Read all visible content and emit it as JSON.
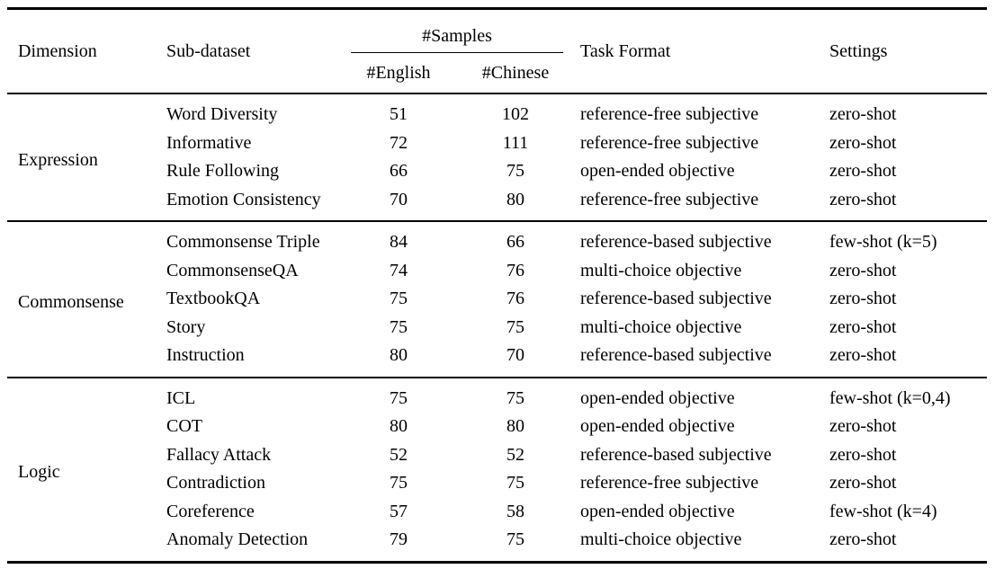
{
  "colors": {
    "text": "#000000",
    "background": "#ffffff",
    "rule": "#000000"
  },
  "table": {
    "header": {
      "dimension": "Dimension",
      "sub_dataset": "Sub-dataset",
      "samples_group": "#Samples",
      "samples_english": "#English",
      "samples_chinese": "#Chinese",
      "task_format": "Task Format",
      "settings": "Settings"
    },
    "sections": [
      {
        "dimension": "Expression",
        "rows": [
          {
            "sub_dataset": "Word Diversity",
            "english": "51",
            "chinese": "102",
            "task_format": "reference-free subjective",
            "settings": "zero-shot"
          },
          {
            "sub_dataset": "Informative",
            "english": "72",
            "chinese": "111",
            "task_format": "reference-free subjective",
            "settings": "zero-shot"
          },
          {
            "sub_dataset": "Rule Following",
            "english": "66",
            "chinese": "75",
            "task_format": "open-ended objective",
            "settings": "zero-shot"
          },
          {
            "sub_dataset": "Emotion Consistency",
            "english": "70",
            "chinese": "80",
            "task_format": "reference-free subjective",
            "settings": "zero-shot"
          }
        ]
      },
      {
        "dimension": "Commonsense",
        "rows": [
          {
            "sub_dataset": "Commonsense Triple",
            "english": "84",
            "chinese": "66",
            "task_format": "reference-based subjective",
            "settings": "few-shot (k=5)"
          },
          {
            "sub_dataset": "CommonsenseQA",
            "english": "74",
            "chinese": "76",
            "task_format": "multi-choice objective",
            "settings": "zero-shot"
          },
          {
            "sub_dataset": "TextbookQA",
            "english": "75",
            "chinese": "76",
            "task_format": "reference-based subjective",
            "settings": "zero-shot"
          },
          {
            "sub_dataset": "Story",
            "english": "75",
            "chinese": "75",
            "task_format": "multi-choice objective",
            "settings": "zero-shot"
          },
          {
            "sub_dataset": "Instruction",
            "english": "80",
            "chinese": "70",
            "task_format": "reference-based subjective",
            "settings": "zero-shot"
          }
        ]
      },
      {
        "dimension": "Logic",
        "rows": [
          {
            "sub_dataset": "ICL",
            "english": "75",
            "chinese": "75",
            "task_format": "open-ended objective",
            "settings": "few-shot (k=0,4)"
          },
          {
            "sub_dataset": "COT",
            "english": "80",
            "chinese": "80",
            "task_format": "open-ended objective",
            "settings": "zero-shot"
          },
          {
            "sub_dataset": "Fallacy Attack",
            "english": "52",
            "chinese": "52",
            "task_format": "reference-based subjective",
            "settings": "zero-shot"
          },
          {
            "sub_dataset": "Contradiction",
            "english": "75",
            "chinese": "75",
            "task_format": "reference-free subjective",
            "settings": "zero-shot"
          },
          {
            "sub_dataset": "Coreference",
            "english": "57",
            "chinese": "58",
            "task_format": "open-ended objective",
            "settings": "few-shot (k=4)"
          },
          {
            "sub_dataset": "Anomaly Detection",
            "english": "79",
            "chinese": "75",
            "task_format": "multi-choice objective",
            "settings": "zero-shot"
          }
        ]
      }
    ]
  }
}
